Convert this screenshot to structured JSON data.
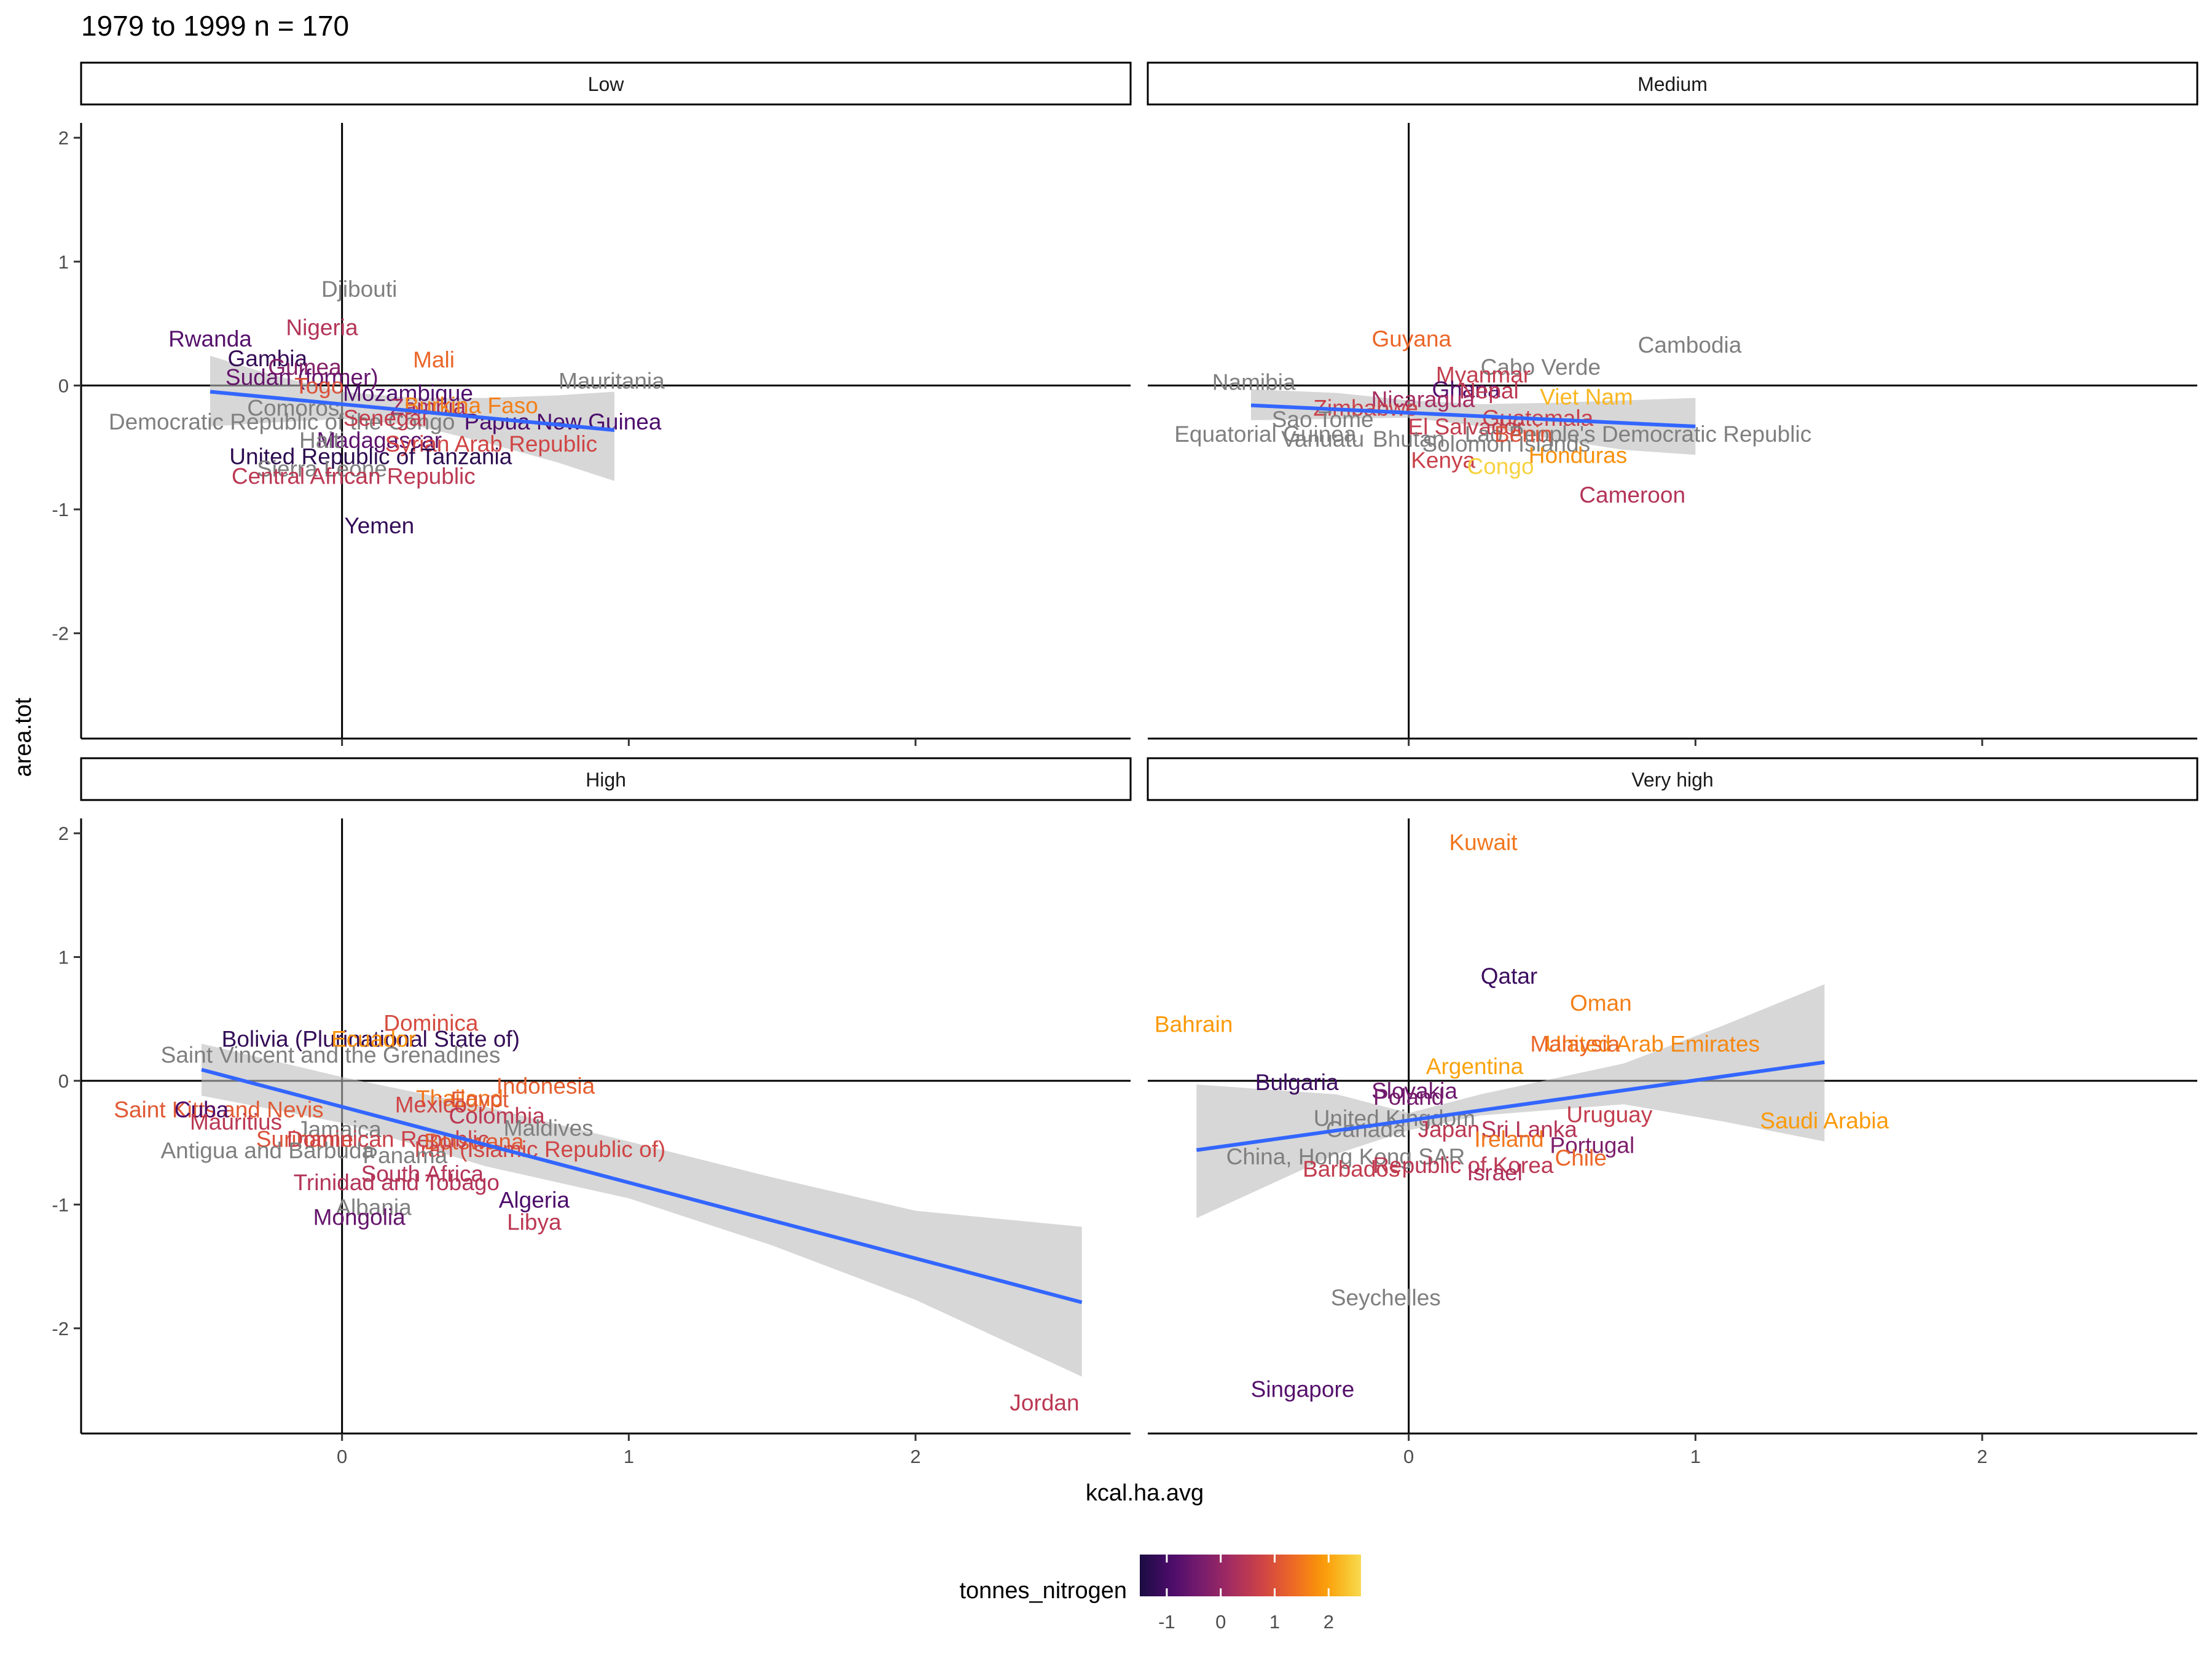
{
  "title": "1979 to 1999 n =  170",
  "xlabel": "kcal.ha.avg",
  "ylabel": "area.tot",
  "legend": {
    "title": "tonnes_nitrogen",
    "ticks": [
      "-1",
      "0",
      "1",
      "2"
    ],
    "tick_values": [
      -1,
      0,
      1,
      2
    ],
    "range": [
      -1.5,
      2.6
    ],
    "colors": [
      "#1b0c41",
      "#4a0c6b",
      "#781c6d",
      "#a52c60",
      "#cf4446",
      "#ed6925",
      "#fb9b06",
      "#f7d13d",
      "#fcffa4"
    ],
    "na_color": "#7f7f7f",
    "position": "bottom"
  },
  "chart_data": {
    "type": "scatter",
    "x_ticks": [
      "0",
      "1",
      "2"
    ],
    "x_tick_values": [
      0,
      1,
      2
    ],
    "y_ticks": [
      "-2",
      "-1",
      "0",
      "1",
      "2"
    ],
    "y_tick_values": [
      -2,
      -1,
      0,
      1,
      2
    ],
    "xlim": [
      -0.91,
      2.75
    ],
    "ylim": [
      -2.85,
      2.12
    ],
    "facets": [
      {
        "name": "Low",
        "trend": {
          "x0": -0.46,
          "y0": -0.05,
          "x1": 0.95,
          "y1": -0.36
        },
        "band": {
          "x": [
            -0.46,
            -0.25,
            0,
            0.25,
            0.5,
            0.75,
            0.95
          ],
          "lo": [
            -0.33,
            -0.3,
            -0.27,
            -0.32,
            -0.46,
            -0.62,
            -0.77
          ],
          "hi": [
            0.24,
            0.09,
            -0.05,
            -0.1,
            -0.1,
            -0.08,
            -0.05
          ]
        },
        "points": [
          {
            "label": "Djibouti",
            "x": 0.06,
            "y": 0.78,
            "c": null
          },
          {
            "label": "Nigeria",
            "x": -0.07,
            "y": 0.47,
            "c": 0.4
          },
          {
            "label": "Rwanda",
            "x": -0.46,
            "y": 0.38,
            "c": -0.8
          },
          {
            "label": "Mali",
            "x": 0.32,
            "y": 0.21,
            "c": 1.3
          },
          {
            "label": "Gambia",
            "x": -0.26,
            "y": 0.22,
            "c": -1.2
          },
          {
            "label": "Guinea",
            "x": -0.13,
            "y": 0.15,
            "c": -0.2
          },
          {
            "label": "Sudan (former)",
            "x": -0.14,
            "y": 0.07,
            "c": -0.6
          },
          {
            "label": "Mauritania",
            "x": 0.94,
            "y": 0.04,
            "c": null
          },
          {
            "label": "Togo",
            "x": -0.08,
            "y": 0.0,
            "c": 1.0
          },
          {
            "label": "Mozambique",
            "x": 0.23,
            "y": -0.06,
            "c": -0.9
          },
          {
            "label": "Zambia",
            "x": 0.3,
            "y": -0.17,
            "c": 0.2
          },
          {
            "label": "Burkina Faso",
            "x": 0.45,
            "y": -0.16,
            "c": 1.6
          },
          {
            "label": "Comoros",
            "x": -0.17,
            "y": -0.18,
            "c": null
          },
          {
            "label": "Democratic Republic of the Congo",
            "x": -0.21,
            "y": -0.29,
            "c": null
          },
          {
            "label": "Senegal",
            "x": 0.15,
            "y": -0.26,
            "c": 0.6
          },
          {
            "label": "Papua New Guinea",
            "x": 0.77,
            "y": -0.29,
            "c": -0.9
          },
          {
            "label": "Madagascar",
            "x": 0.13,
            "y": -0.44,
            "c": -0.7
          },
          {
            "label": "Syrian Arab Republic",
            "x": 0.52,
            "y": -0.47,
            "c": 0.8
          },
          {
            "label": "Haiti",
            "x": -0.07,
            "y": -0.44,
            "c": null
          },
          {
            "label": "United Republic of Tanzania",
            "x": 0.1,
            "y": -0.57,
            "c": -1.3
          },
          {
            "label": "Sierra Leone",
            "x": -0.07,
            "y": -0.67,
            "c": null
          },
          {
            "label": "Central African Republic",
            "x": 0.04,
            "y": -0.73,
            "c": 0.5
          },
          {
            "label": "Yemen",
            "x": 0.13,
            "y": -1.13,
            "c": -1.2
          }
        ]
      },
      {
        "name": "Medium",
        "trend": {
          "x0": -0.55,
          "y0": -0.16,
          "x1": 1.0,
          "y1": -0.33
        },
        "band": {
          "x": [
            -0.55,
            -0.25,
            0,
            0.25,
            0.5,
            0.75,
            1.0
          ],
          "lo": [
            -0.28,
            -0.27,
            -0.26,
            -0.33,
            -0.43,
            -0.52,
            -0.56
          ],
          "hi": [
            -0.03,
            -0.06,
            -0.12,
            -0.15,
            -0.14,
            -0.12,
            -0.1
          ]
        },
        "points": [
          {
            "label": "Guyana",
            "x": 0.01,
            "y": 0.38,
            "c": 1.3
          },
          {
            "label": "Cambodia",
            "x": 0.98,
            "y": 0.33,
            "c": null
          },
          {
            "label": "Cabo Verde",
            "x": 0.46,
            "y": 0.15,
            "c": null
          },
          {
            "label": "Myanmar",
            "x": 0.26,
            "y": 0.09,
            "c": 0.6
          },
          {
            "label": "Namibia",
            "x": -0.54,
            "y": 0.03,
            "c": null
          },
          {
            "label": "Ghana",
            "x": 0.2,
            "y": -0.03,
            "c": -0.8
          },
          {
            "label": "Nepal",
            "x": 0.28,
            "y": -0.04,
            "c": 0.5
          },
          {
            "label": "Viet Nam",
            "x": 0.62,
            "y": -0.09,
            "c": 2.2
          },
          {
            "label": "Nicaragua",
            "x": 0.05,
            "y": -0.11,
            "c": 0.2
          },
          {
            "label": "Zimbabwe",
            "x": -0.15,
            "y": -0.18,
            "c": 0.7
          },
          {
            "label": "Guatemala",
            "x": 0.45,
            "y": -0.26,
            "c": 0.7
          },
          {
            "label": "Sao Tome",
            "x": -0.3,
            "y": -0.27,
            "c": null
          },
          {
            "label": "El Salvador",
            "x": 0.2,
            "y": -0.33,
            "c": 0.6
          },
          {
            "label": "Lao People's Democratic Republic",
            "x": 0.8,
            "y": -0.39,
            "c": null
          },
          {
            "label": "Equatorial Guinea",
            "x": -0.5,
            "y": -0.39,
            "c": null
          },
          {
            "label": "Vanuatu",
            "x": -0.3,
            "y": -0.43,
            "c": null
          },
          {
            "label": "Bhutan",
            "x": 0.0,
            "y": -0.43,
            "c": null
          },
          {
            "label": "Solomon Islands",
            "x": 0.34,
            "y": -0.47,
            "c": null
          },
          {
            "label": "Benin",
            "x": 0.4,
            "y": -0.39,
            "c": 1.0
          },
          {
            "label": "Kenya",
            "x": 0.12,
            "y": -0.6,
            "c": 0.7
          },
          {
            "label": "Honduras",
            "x": 0.59,
            "y": -0.56,
            "c": 1.8
          },
          {
            "label": "Congo",
            "x": 0.32,
            "y": -0.65,
            "c": 2.5
          },
          {
            "label": "Cameroon",
            "x": 0.78,
            "y": -0.88,
            "c": 0.4
          }
        ]
      },
      {
        "name": "High",
        "trend": {
          "x0": -0.49,
          "y0": 0.09,
          "x1": 2.58,
          "y1": -1.79
        },
        "band": {
          "x": [
            -0.49,
            0,
            0.5,
            1.0,
            1.5,
            2.0,
            2.58
          ],
          "lo": [
            -0.12,
            -0.34,
            -0.69,
            -0.95,
            -1.33,
            -1.77,
            -2.39
          ],
          "hi": [
            0.3,
            0.03,
            -0.21,
            -0.49,
            -0.78,
            -1.05,
            -1.18
          ]
        },
        "points": [
          {
            "label": "Dominica",
            "x": 0.31,
            "y": 0.47,
            "c": 0.9
          },
          {
            "label": "Bolivia (Plurinational State of)",
            "x": 0.1,
            "y": 0.34,
            "c": -1.2
          },
          {
            "label": "Ecuador",
            "x": 0.11,
            "y": 0.34,
            "c": 1.8
          },
          {
            "label": "Saint Vincent and the Grenadines",
            "x": -0.04,
            "y": 0.21,
            "c": null
          },
          {
            "label": "Indonesia",
            "x": 0.71,
            "y": -0.04,
            "c": 1.2
          },
          {
            "label": "Thailand",
            "x": 0.41,
            "y": -0.14,
            "c": 1.5
          },
          {
            "label": "Egypt",
            "x": 0.48,
            "y": -0.15,
            "c": 1.1
          },
          {
            "label": "Mexico",
            "x": 0.31,
            "y": -0.19,
            "c": 0.8
          },
          {
            "label": "Saint Kitts and Nevis",
            "x": -0.43,
            "y": -0.23,
            "c": 1.1
          },
          {
            "label": "Cuba",
            "x": -0.49,
            "y": -0.23,
            "c": -0.9
          },
          {
            "label": "Mauritius",
            "x": -0.37,
            "y": -0.33,
            "c": 0.5
          },
          {
            "label": "Jamaica",
            "x": -0.01,
            "y": -0.39,
            "c": null
          },
          {
            "label": "Colombia",
            "x": 0.54,
            "y": -0.28,
            "c": 0.5
          },
          {
            "label": "Maldives",
            "x": 0.72,
            "y": -0.38,
            "c": null
          },
          {
            "label": "Suriname",
            "x": -0.13,
            "y": -0.47,
            "c": 1.0
          },
          {
            "label": "Dominican Republic",
            "x": 0.16,
            "y": -0.47,
            "c": 0.7
          },
          {
            "label": "Botswana",
            "x": 0.46,
            "y": -0.49,
            "c": 1.1
          },
          {
            "label": "Iran (Islamic Republic of)",
            "x": 0.69,
            "y": -0.55,
            "c": 0.8
          },
          {
            "label": "Antigua and Barbuda",
            "x": -0.26,
            "y": -0.56,
            "c": null
          },
          {
            "label": "Panama",
            "x": 0.22,
            "y": -0.6,
            "c": null
          },
          {
            "label": "Trinidad and Tobago",
            "x": 0.19,
            "y": -0.82,
            "c": 0.4
          },
          {
            "label": "South Africa",
            "x": 0.28,
            "y": -0.75,
            "c": 0.4
          },
          {
            "label": "Algeria",
            "x": 0.67,
            "y": -0.96,
            "c": -0.9
          },
          {
            "label": "Albania",
            "x": 0.11,
            "y": -1.02,
            "c": null
          },
          {
            "label": "Mongolia",
            "x": 0.06,
            "y": -1.1,
            "c": -0.6
          },
          {
            "label": "Libya",
            "x": 0.67,
            "y": -1.14,
            "c": 0.5
          },
          {
            "label": "Jordan",
            "x": 2.45,
            "y": -2.6,
            "c": 0.5
          }
        ]
      },
      {
        "name": "Very high",
        "trend": {
          "x0": -0.74,
          "y0": -0.56,
          "x1": 1.45,
          "y1": 0.15
        },
        "band": {
          "x": [
            -0.74,
            -0.25,
            0,
            0.25,
            0.75,
            1.1,
            1.45
          ],
          "lo": [
            -1.11,
            -0.59,
            -0.4,
            -0.28,
            -0.19,
            -0.33,
            -0.49
          ],
          "hi": [
            -0.03,
            -0.11,
            -0.26,
            -0.11,
            0.14,
            0.45,
            0.78
          ]
        },
        "points": [
          {
            "label": "Kuwait",
            "x": 0.26,
            "y": 1.93,
            "c": 1.5
          },
          {
            "label": "Qatar",
            "x": 0.35,
            "y": 0.85,
            "c": -1.1
          },
          {
            "label": "Oman",
            "x": 0.67,
            "y": 0.63,
            "c": 1.6
          },
          {
            "label": "Bahrain",
            "x": -0.75,
            "y": 0.46,
            "c": 1.9
          },
          {
            "label": "United Arab Emirates",
            "x": 0.85,
            "y": 0.3,
            "c": 1.7
          },
          {
            "label": "Malaysia",
            "x": 0.58,
            "y": 0.3,
            "c": 1.3
          },
          {
            "label": "Argentina",
            "x": 0.23,
            "y": 0.12,
            "c": 2.0
          },
          {
            "label": "Bulgaria",
            "x": -0.39,
            "y": -0.01,
            "c": -1.1
          },
          {
            "label": "Slovakia",
            "x": 0.02,
            "y": -0.08,
            "c": -0.5
          },
          {
            "label": "Poland",
            "x": 0.0,
            "y": -0.13,
            "c": -0.4
          },
          {
            "label": "Uruguay",
            "x": 0.7,
            "y": -0.27,
            "c": 0.6
          },
          {
            "label": "Saudi Arabia",
            "x": 1.45,
            "y": -0.32,
            "c": 1.9
          },
          {
            "label": "United Kingdom",
            "x": -0.05,
            "y": -0.3,
            "c": null
          },
          {
            "label": "Canada",
            "x": -0.15,
            "y": -0.39,
            "c": null
          },
          {
            "label": "Japan",
            "x": 0.14,
            "y": -0.39,
            "c": 0.5
          },
          {
            "label": "Sri Lanka",
            "x": 0.42,
            "y": -0.39,
            "c": 0.4
          },
          {
            "label": "Ireland",
            "x": 0.35,
            "y": -0.47,
            "c": 1.5
          },
          {
            "label": "Portugal",
            "x": 0.64,
            "y": -0.52,
            "c": -0.3
          },
          {
            "label": "Chile",
            "x": 0.6,
            "y": -0.62,
            "c": 1.3
          },
          {
            "label": "China, Hong Kong SAR",
            "x": -0.22,
            "y": -0.61,
            "c": null
          },
          {
            "label": "Republic of Korea",
            "x": 0.19,
            "y": -0.68,
            "c": 0.5
          },
          {
            "label": "Barbados",
            "x": -0.2,
            "y": -0.71,
            "c": 0.6
          },
          {
            "label": "Israel",
            "x": 0.3,
            "y": -0.74,
            "c": 0.3
          },
          {
            "label": "Seychelles",
            "x": -0.08,
            "y": -1.75,
            "c": null
          },
          {
            "label": "Singapore",
            "x": -0.37,
            "y": -2.49,
            "c": -0.8
          }
        ]
      }
    ]
  }
}
